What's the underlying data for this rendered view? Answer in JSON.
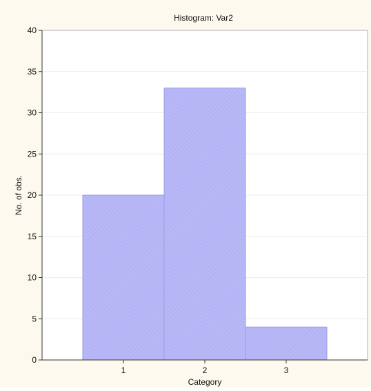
{
  "chart_data": {
    "type": "bar",
    "title": "Histogram: Var2",
    "xlabel": "Category",
    "ylabel": "No. of obs.",
    "categories": [
      "1",
      "2",
      "3"
    ],
    "values": [
      20,
      33,
      4
    ],
    "ylim": [
      0,
      40
    ],
    "yticks": [
      0,
      5,
      10,
      15,
      20,
      25,
      30,
      35,
      40
    ],
    "grid": true,
    "legend": "none",
    "bar_color": "#b8b8f6",
    "bar_edge_color": "#9a9ae6",
    "background_color": "#fdf9ee",
    "plot_background_color": "#ffffff"
  }
}
